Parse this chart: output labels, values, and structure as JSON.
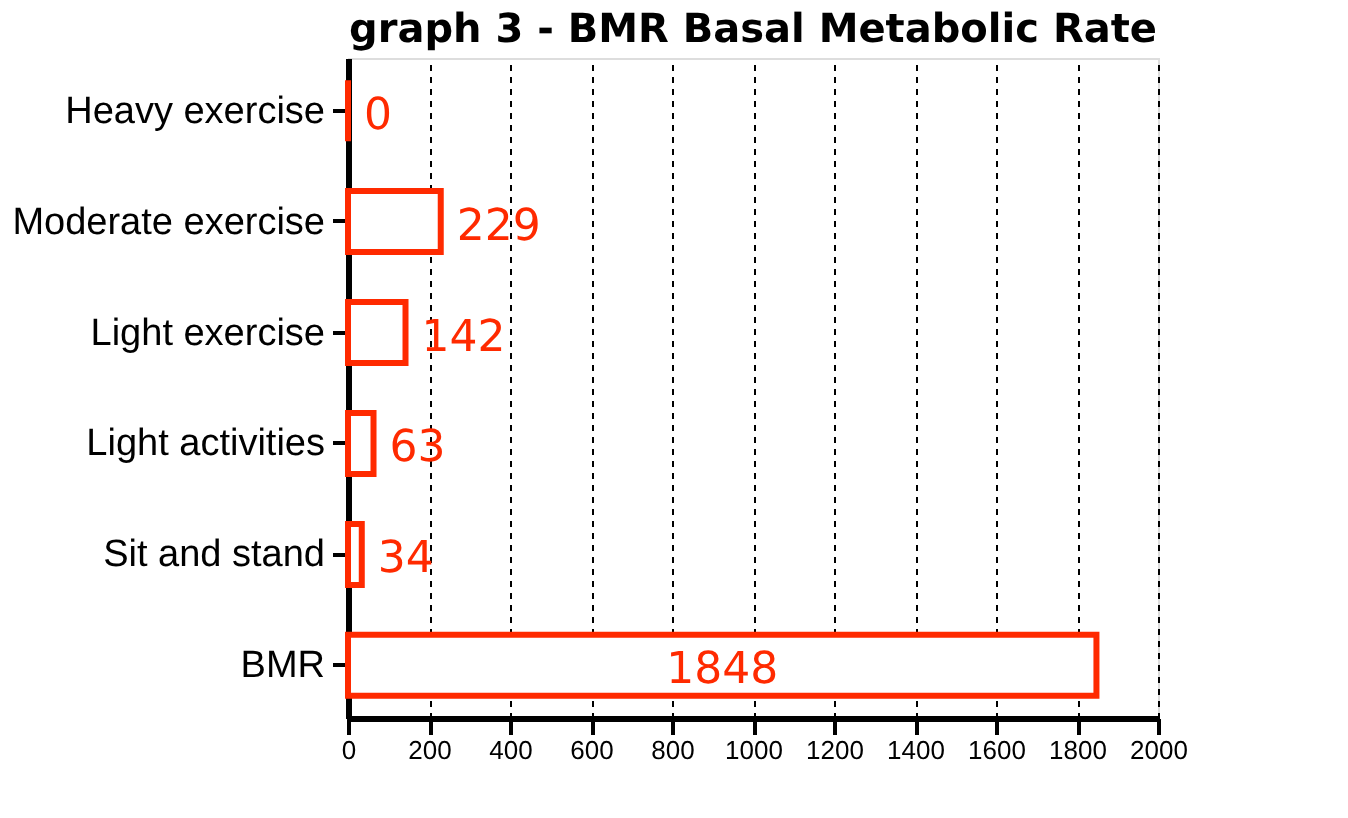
{
  "chart_data": {
    "type": "bar",
    "orientation": "horizontal",
    "title": "graph 3 - BMR  Basal Metabolic Rate",
    "categories": [
      "Heavy exercise",
      "Moderate exercise",
      "Light exercise",
      "Light activities",
      "Sit and stand",
      "BMR"
    ],
    "values": [
      0,
      229,
      142,
      63,
      34,
      1848
    ],
    "color": "#ff2a00",
    "data_labels": true,
    "xlim": [
      0,
      2000
    ],
    "xticks": [
      0,
      200,
      400,
      600,
      800,
      1000,
      1200,
      1400,
      1600,
      1800,
      2000
    ],
    "grid": "x"
  }
}
